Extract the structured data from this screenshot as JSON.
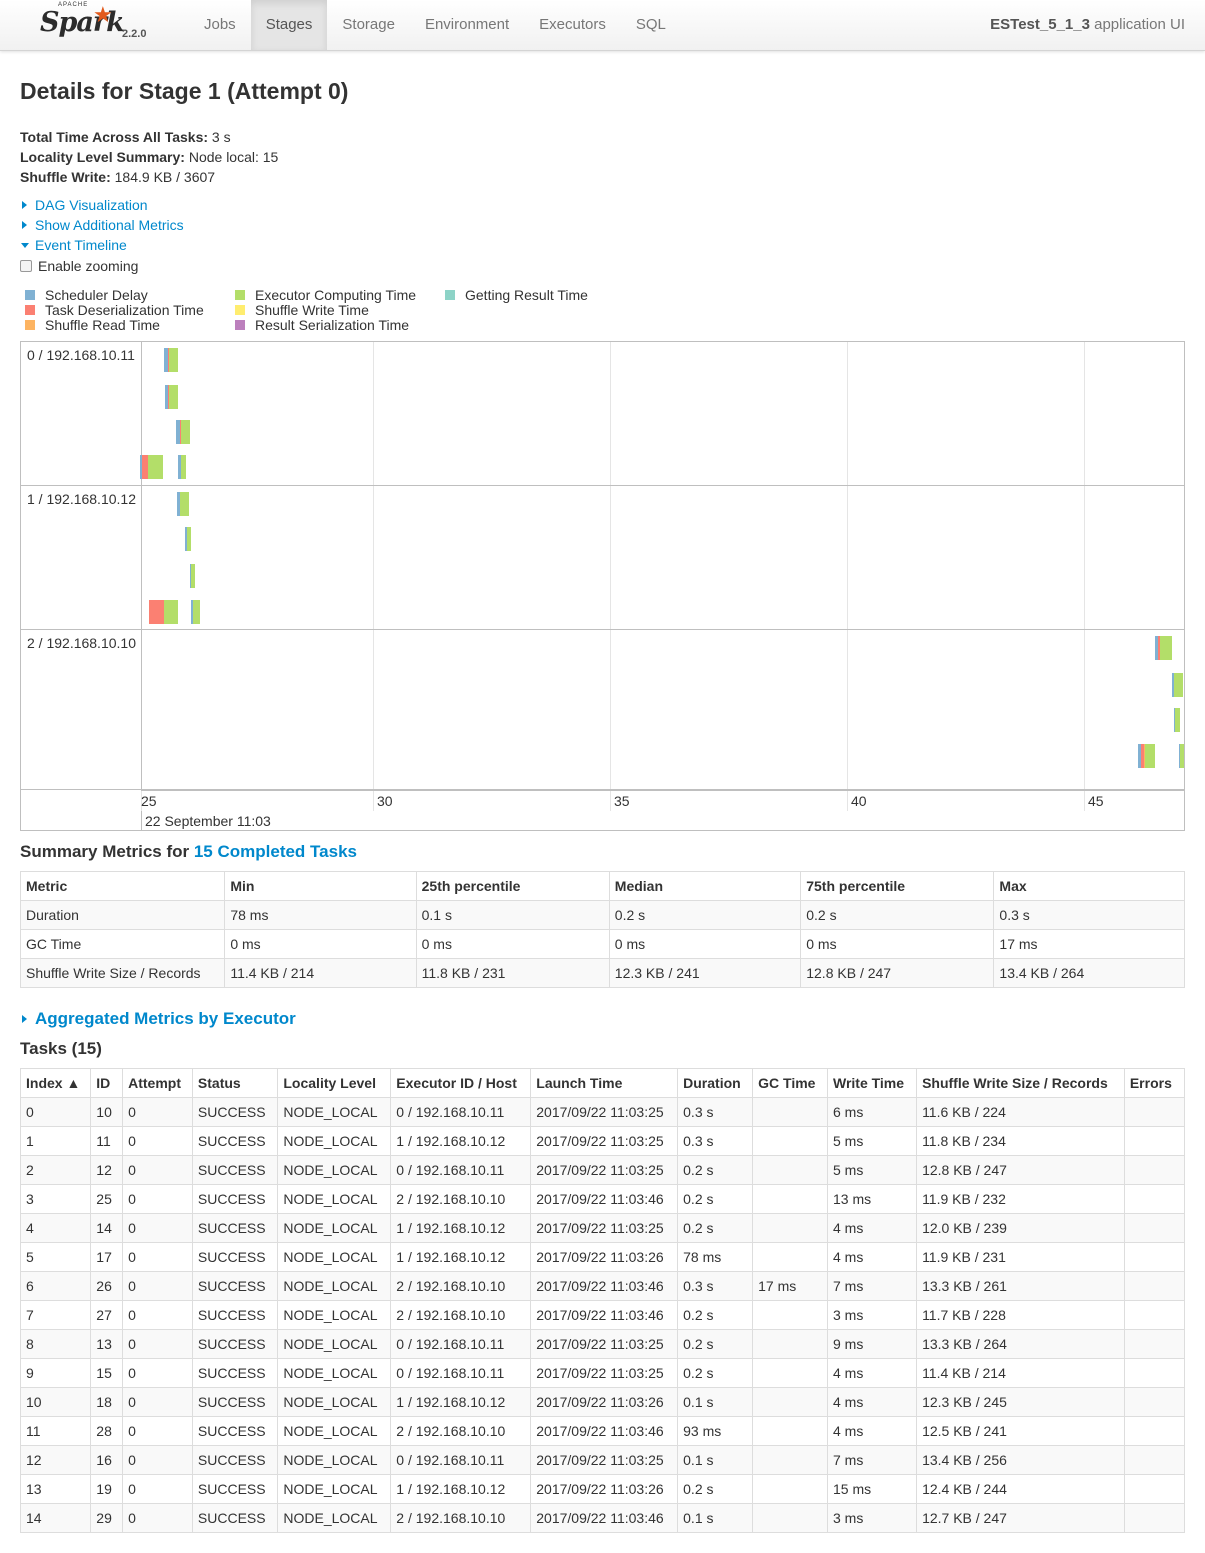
{
  "brand": {
    "apache": "APACHE",
    "name": "Spark",
    "version": "2.2.0"
  },
  "nav": {
    "tabs": [
      "Jobs",
      "Stages",
      "Storage",
      "Environment",
      "Executors",
      "SQL"
    ],
    "active": "Stages"
  },
  "app": {
    "name": "ESTest_5_1_3",
    "suffix": " application UI"
  },
  "page_title": "Details for Stage 1 (Attempt 0)",
  "summary": {
    "total_time_label": "Total Time Across All Tasks:",
    "total_time": " 3 s",
    "locality_label": "Locality Level Summary:",
    "locality": " Node local: 15",
    "shuffle_write_label": "Shuffle Write:",
    "shuffle_write": " 184.9 KB / 3607"
  },
  "toggles": {
    "dag": "DAG Visualization",
    "additional": "Show Additional Metrics",
    "timeline": "Event Timeline"
  },
  "enable_zooming": "Enable zooming",
  "legend": [
    {
      "label": "Scheduler Delay",
      "color": "#80b1d3"
    },
    {
      "label": "Task Deserialization Time",
      "color": "#fb8072"
    },
    {
      "label": "Shuffle Read Time",
      "color": "#fdb462"
    },
    {
      "label": "Executor Computing Time",
      "color": "#b3de69"
    },
    {
      "label": "Shuffle Write Time",
      "color": "#ffed6f"
    },
    {
      "label": "Result Serialization Time",
      "color": "#bc80bd"
    },
    {
      "label": "Getting Result Time",
      "color": "#8dd3c7"
    }
  ],
  "timeline": {
    "executors": [
      "0 / 192.168.10.11",
      "1 / 192.168.10.12",
      "2 / 192.168.10.10"
    ],
    "ticks": [
      "25",
      "30",
      "35",
      "40",
      "45"
    ],
    "date_label": "22 September 11:03"
  },
  "summary_metrics": {
    "heading": "Summary Metrics for ",
    "link": "15 Completed Tasks",
    "columns": [
      "Metric",
      "Min",
      "25th percentile",
      "Median",
      "75th percentile",
      "Max"
    ],
    "rows": [
      [
        "Duration",
        "78 ms",
        "0.1 s",
        "0.2 s",
        "0.2 s",
        "0.3 s"
      ],
      [
        "GC Time",
        "0 ms",
        "0 ms",
        "0 ms",
        "0 ms",
        "17 ms"
      ],
      [
        "Shuffle Write Size / Records",
        "11.4 KB / 214",
        "11.8 KB / 231",
        "12.3 KB / 241",
        "12.8 KB / 247",
        "13.4 KB / 264"
      ]
    ]
  },
  "aggregated": "Aggregated Metrics by Executor",
  "tasks": {
    "heading": "Tasks (15)",
    "columns": [
      "Index ▲",
      "ID",
      "Attempt",
      "Status",
      "Locality Level",
      "Executor ID / Host",
      "Launch Time",
      "Duration",
      "GC Time",
      "Write Time",
      "Shuffle Write Size / Records",
      "Errors"
    ],
    "rows": [
      [
        "0",
        "10",
        "0",
        "SUCCESS",
        "NODE_LOCAL",
        "0 / 192.168.10.11",
        "2017/09/22 11:03:25",
        "0.3 s",
        "",
        "6 ms",
        "11.6 KB / 224",
        ""
      ],
      [
        "1",
        "11",
        "0",
        "SUCCESS",
        "NODE_LOCAL",
        "1 / 192.168.10.12",
        "2017/09/22 11:03:25",
        "0.3 s",
        "",
        "5 ms",
        "11.8 KB / 234",
        ""
      ],
      [
        "2",
        "12",
        "0",
        "SUCCESS",
        "NODE_LOCAL",
        "0 / 192.168.10.11",
        "2017/09/22 11:03:25",
        "0.2 s",
        "",
        "5 ms",
        "12.8 KB / 247",
        ""
      ],
      [
        "3",
        "25",
        "0",
        "SUCCESS",
        "NODE_LOCAL",
        "2 / 192.168.10.10",
        "2017/09/22 11:03:46",
        "0.2 s",
        "",
        "13 ms",
        "11.9 KB / 232",
        ""
      ],
      [
        "4",
        "14",
        "0",
        "SUCCESS",
        "NODE_LOCAL",
        "1 / 192.168.10.12",
        "2017/09/22 11:03:25",
        "0.2 s",
        "",
        "4 ms",
        "12.0 KB / 239",
        ""
      ],
      [
        "5",
        "17",
        "0",
        "SUCCESS",
        "NODE_LOCAL",
        "1 / 192.168.10.12",
        "2017/09/22 11:03:26",
        "78 ms",
        "",
        "4 ms",
        "11.9 KB / 231",
        ""
      ],
      [
        "6",
        "26",
        "0",
        "SUCCESS",
        "NODE_LOCAL",
        "2 / 192.168.10.10",
        "2017/09/22 11:03:46",
        "0.3 s",
        "17 ms",
        "7 ms",
        "13.3 KB / 261",
        ""
      ],
      [
        "7",
        "27",
        "0",
        "SUCCESS",
        "NODE_LOCAL",
        "2 / 192.168.10.10",
        "2017/09/22 11:03:46",
        "0.2 s",
        "",
        "3 ms",
        "11.7 KB / 228",
        ""
      ],
      [
        "8",
        "13",
        "0",
        "SUCCESS",
        "NODE_LOCAL",
        "0 / 192.168.10.11",
        "2017/09/22 11:03:25",
        "0.2 s",
        "",
        "9 ms",
        "13.3 KB / 264",
        ""
      ],
      [
        "9",
        "15",
        "0",
        "SUCCESS",
        "NODE_LOCAL",
        "0 / 192.168.10.11",
        "2017/09/22 11:03:25",
        "0.2 s",
        "",
        "4 ms",
        "11.4 KB / 214",
        ""
      ],
      [
        "10",
        "18",
        "0",
        "SUCCESS",
        "NODE_LOCAL",
        "1 / 192.168.10.12",
        "2017/09/22 11:03:26",
        "0.1 s",
        "",
        "4 ms",
        "12.3 KB / 245",
        ""
      ],
      [
        "11",
        "28",
        "0",
        "SUCCESS",
        "NODE_LOCAL",
        "2 / 192.168.10.10",
        "2017/09/22 11:03:46",
        "93 ms",
        "",
        "4 ms",
        "12.5 KB / 241",
        ""
      ],
      [
        "12",
        "16",
        "0",
        "SUCCESS",
        "NODE_LOCAL",
        "0 / 192.168.10.11",
        "2017/09/22 11:03:25",
        "0.1 s",
        "",
        "7 ms",
        "13.4 KB / 256",
        ""
      ],
      [
        "13",
        "19",
        "0",
        "SUCCESS",
        "NODE_LOCAL",
        "1 / 192.168.10.12",
        "2017/09/22 11:03:26",
        "0.2 s",
        "",
        "15 ms",
        "12.4 KB / 244",
        ""
      ],
      [
        "14",
        "29",
        "0",
        "SUCCESS",
        "NODE_LOCAL",
        "2 / 192.168.10.10",
        "2017/09/22 11:03:46",
        "0.1 s",
        "",
        "3 ms",
        "12.7 KB / 247",
        ""
      ]
    ]
  }
}
